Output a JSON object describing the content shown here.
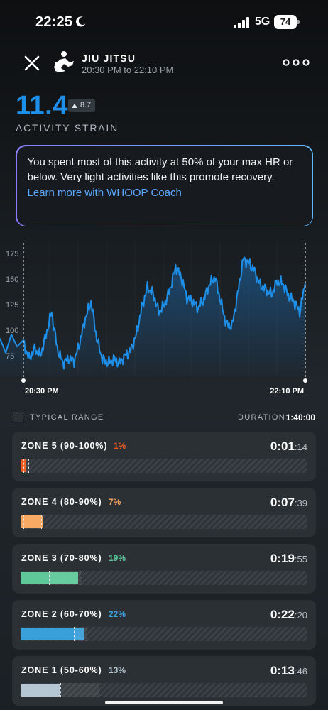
{
  "status_bar": {
    "time": "22:25",
    "network": "5G",
    "battery": "74",
    "icons": [
      "moon-icon",
      "signal-icon",
      "battery-icon"
    ]
  },
  "header": {
    "title": "JIU JITSU",
    "time_range": "20:30 PM to 22:10 PM",
    "icons": [
      "close-icon",
      "jiu-jitsu-icon",
      "more-icon"
    ]
  },
  "strain": {
    "value": "11.4",
    "badge": "8.7",
    "label": "ACTIVITY STRAIN"
  },
  "coach": {
    "message": "You spent most of this activity at 50% of your max HR or below. Very light activities like this promote recovery.",
    "link": "Learn more with WHOOP Coach"
  },
  "chart_data": {
    "type": "area",
    "y_ticks": [
      "175",
      "150",
      "125",
      "100",
      "75"
    ],
    "ylim": [
      55,
      180
    ],
    "x_labels": [
      "20:30 PM",
      "22:10 PM"
    ],
    "accent_color": "#1e8fe8",
    "x": [
      0,
      2,
      4,
      6,
      8,
      10,
      12,
      14,
      16,
      18,
      20,
      22,
      24,
      26,
      28,
      30,
      32,
      34,
      36,
      38,
      40,
      42,
      44,
      46,
      48,
      50,
      52,
      54,
      56,
      58,
      60,
      62,
      64,
      66,
      68,
      70,
      72,
      74,
      76,
      78,
      80,
      82,
      84,
      86,
      88,
      90,
      92,
      94,
      96,
      98,
      100
    ],
    "series": [
      {
        "values": [
          88,
          72,
          82,
          75,
          95,
          118,
          82,
          68,
          72,
          70,
          88,
          112,
          128,
          92,
          72,
          68,
          72,
          68,
          75,
          80,
          95,
          122,
          142,
          136,
          118,
          125,
          140,
          162,
          152,
          132,
          128,
          122,
          130,
          145,
          152,
          128,
          106,
          104,
          135,
          170,
          166,
          158,
          144,
          140,
          135,
          148,
          146,
          134,
          128,
          118,
          146
        ]
      }
    ]
  },
  "legend": {
    "typical_range": "TYPICAL RANGE",
    "duration_label": "DURATION",
    "duration_value": "1:40:00"
  },
  "zones": [
    {
      "name": "ZONE 5 (90-100%)",
      "pct": "1%",
      "time_main": "0:01",
      "time_sec": ":14",
      "color": "#ef5a1c",
      "fill": 0.02,
      "typical": [
        0.01,
        0.03
      ]
    },
    {
      "name": "ZONE 4 (80-90%)",
      "pct": "7%",
      "time_main": "0:07",
      "time_sec": ":39",
      "color": "#f8a45a",
      "fill": 0.077,
      "typical": [
        0.01,
        0.075
      ]
    },
    {
      "name": "ZONE 3 (70-80%)",
      "pct": "19%",
      "time_main": "0:19",
      "time_sec": ":55",
      "color": "#5fc79a",
      "fill": 0.2,
      "typical": [
        0.1,
        0.215
      ]
    },
    {
      "name": "ZONE 2 (60-70%)",
      "pct": "22%",
      "time_main": "0:22",
      "time_sec": ":20",
      "color": "#3aa0d9",
      "fill": 0.223,
      "typical": [
        0.185,
        0.233
      ]
    },
    {
      "name": "ZONE 1 (50-60%)",
      "pct": "13%",
      "time_main": "0:13",
      "time_sec": ":46",
      "color": "#b4c7d2",
      "fill": 0.138,
      "typical": [
        0.138,
        0.275
      ]
    }
  ]
}
